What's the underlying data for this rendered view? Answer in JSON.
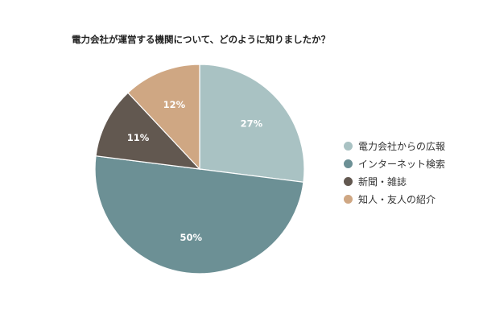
{
  "chart_data": {
    "type": "pie",
    "title": "電力会社が運営する機関について、どのように知りましたか？",
    "legend_position": "right",
    "series": [
      {
        "name": "電力会社からの広報",
        "value": 27,
        "label": "27%",
        "color": "#a9c2c3"
      },
      {
        "name": "インターネット検索",
        "value": 50,
        "label": "50%",
        "color": "#6c9095"
      },
      {
        "name": "新聞・雑誌",
        "value": 11,
        "label": "11%",
        "color": "#625850"
      },
      {
        "name": "知人・友人の紹介",
        "value": 12,
        "label": "12%",
        "color": "#cfa783"
      }
    ]
  }
}
